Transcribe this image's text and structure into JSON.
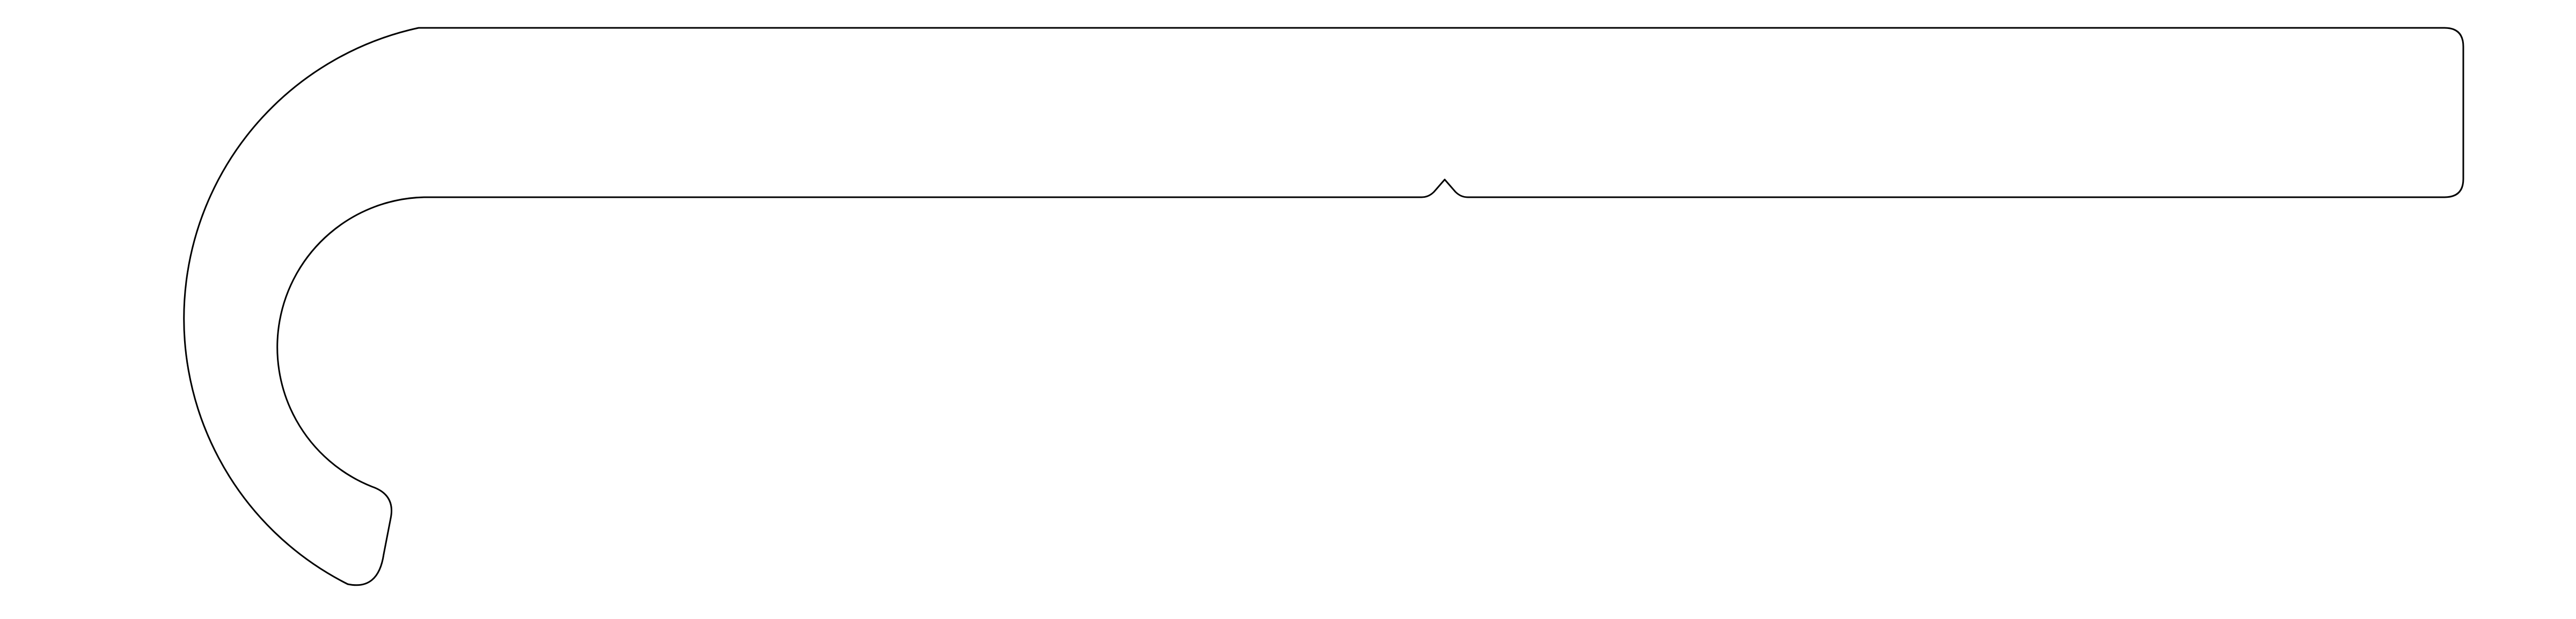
{
  "drawing": {
    "subject": "hook-shaped-flat-bar",
    "stroke_color": "#000000",
    "background_color": "#ffffff",
    "has_text": false
  }
}
